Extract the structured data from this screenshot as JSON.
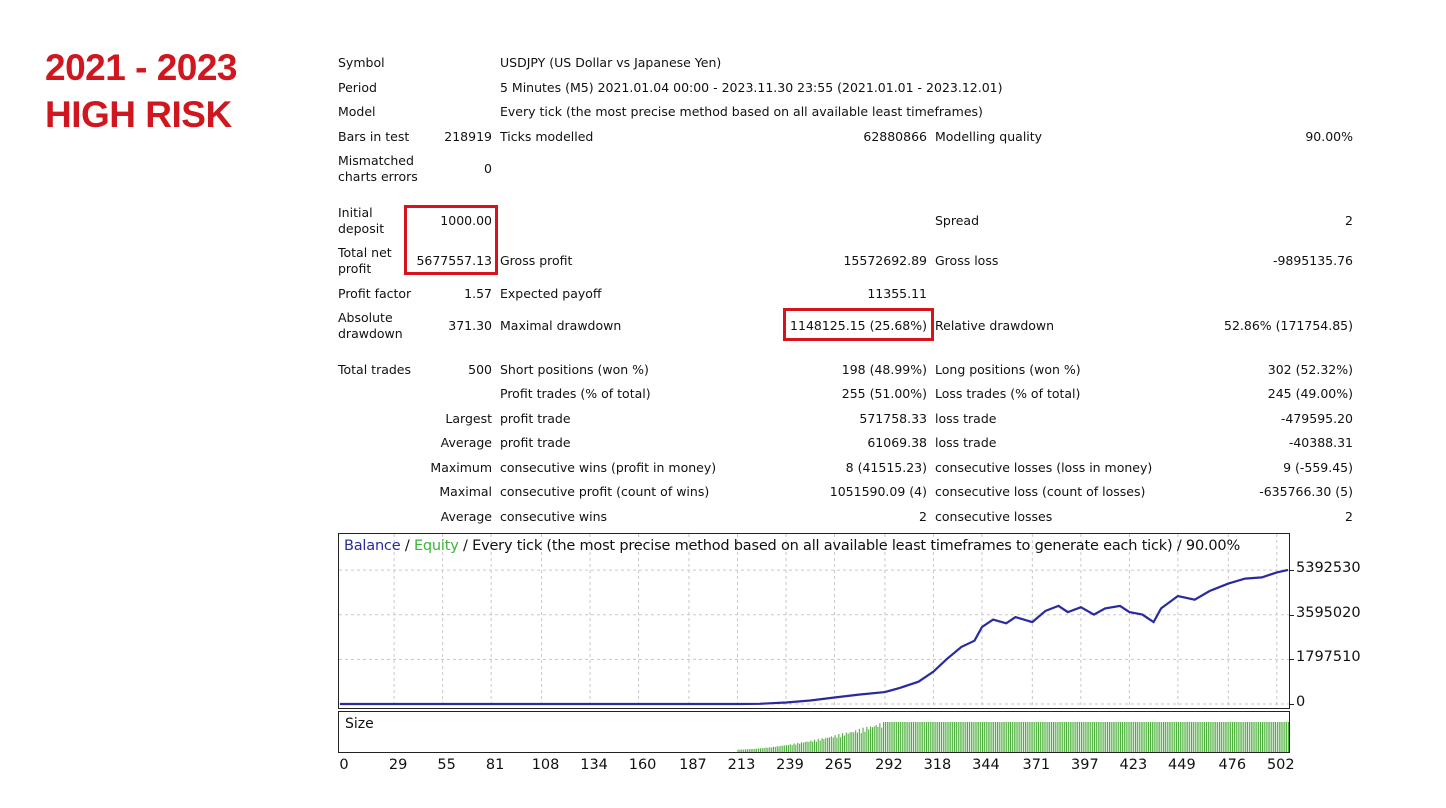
{
  "headline": {
    "line1": "2021 - 2023",
    "line2": "HIGH RISK"
  },
  "report": {
    "symbol_label": "Symbol",
    "symbol_value": "USDJPY (US Dollar vs Japanese Yen)",
    "period_label": "Period",
    "period_value": "5 Minutes (M5) 2021.01.04 00:00 - 2023.11.30 23:55 (2021.01.01 - 2023.12.01)",
    "model_label": "Model",
    "model_value": "Every tick (the most precise method based on all available least timeframes)",
    "bars_label": "Bars in test",
    "bars_value": "218919",
    "ticks_label": "Ticks modelled",
    "ticks_value": "62880866",
    "quality_label": "Modelling quality",
    "quality_value": "90.00%",
    "mismatch_label": "Mismatched charts errors",
    "mismatch_value": "0",
    "deposit_label": "Initial deposit",
    "deposit_value": "1000.00",
    "spread_label": "Spread",
    "spread_value": "2",
    "netprofit_label": "Total net profit",
    "netprofit_value": "5677557.13",
    "grossprofit_label": "Gross profit",
    "grossprofit_value": "15572692.89",
    "grossloss_label": "Gross loss",
    "grossloss_value": "-9895135.76",
    "pf_label": "Profit factor",
    "pf_value": "1.57",
    "payoff_label": "Expected payoff",
    "payoff_value": "11355.11",
    "absdd_label": "Absolute drawdown",
    "absdd_value": "371.30",
    "maxdd_label": "Maximal drawdown",
    "maxdd_value": "1148125.15 (25.68%)",
    "reldd_label": "Relative drawdown",
    "reldd_value": "52.86% (171754.85)",
    "trades_label": "Total trades",
    "trades_value": "500",
    "short_label": "Short positions (won %)",
    "short_value": "198 (48.99%)",
    "long_label": "Long positions (won %)",
    "long_value": "302 (52.32%)",
    "profittrades_label": "Profit trades (% of total)",
    "profittrades_value": "255 (51.00%)",
    "losstrades_label": "Loss trades (% of total)",
    "losstrades_value": "245 (49.00%)",
    "largest_label": "Largest",
    "largest_profit_label": "profit trade",
    "largest_profit_value": "571758.33",
    "largest_loss_label": "loss trade",
    "largest_loss_value": "-479595.20",
    "average_label": "Average",
    "average_profit_label": "profit trade",
    "average_profit_value": "61069.38",
    "average_loss_label": "loss trade",
    "average_loss_value": "-40388.31",
    "maximum_label": "Maximum",
    "max_wins_label": "consecutive wins (profit in money)",
    "max_wins_value": "8 (41515.23)",
    "max_losses_label": "consecutive losses (loss in money)",
    "max_losses_value": "9 (-559.45)",
    "maximal_label": "Maximal",
    "maxl_profit_label": "consecutive profit (count of wins)",
    "maxl_profit_value": "1051590.09 (4)",
    "maxl_loss_label": "consecutive loss (count of losses)",
    "maxl_loss_value": "-635766.30 (5)",
    "average2_label": "Average",
    "avg_wins_label": "consecutive wins",
    "avg_wins_value": "2",
    "avg_losses_label": "consecutive losses",
    "avg_losses_value": "2"
  },
  "chart": {
    "legend_balance": "Balance",
    "legend_sep1": " / ",
    "legend_equity": "Equity",
    "legend_rest": " / Every tick (the most precise method based on all available least timeframes to generate each tick) / 90.00%",
    "size_label": "Size"
  },
  "colors": {
    "balance": "#2a2aa0",
    "equity": "#3cb43c",
    "size_bars": "#4caf3c",
    "highlight": "#d7141c",
    "headline": "#d0161e"
  },
  "chart_data": {
    "type": "line",
    "title": "",
    "series": [
      {
        "name": "Balance",
        "x": [
          0,
          29,
          55,
          81,
          108,
          134,
          160,
          187,
          213,
          225,
          239,
          252,
          265,
          278,
          292,
          300,
          310,
          318,
          325,
          333,
          340,
          344,
          350,
          357,
          362,
          371,
          378,
          385,
          390,
          397,
          404,
          410,
          418,
          423,
          430,
          436,
          440,
          449,
          458,
          466,
          476,
          485,
          494,
          502,
          508
        ],
        "y": [
          1000,
          1000,
          1000,
          1000,
          1000,
          1000,
          1000,
          1000,
          1000,
          10000,
          60000,
          140000,
          260000,
          380000,
          480000,
          650000,
          900000,
          1300000,
          1800000,
          2300000,
          2550000,
          3100000,
          3400000,
          3250000,
          3500000,
          3300000,
          3750000,
          3950000,
          3700000,
          3900000,
          3600000,
          3850000,
          3950000,
          3700000,
          3600000,
          3300000,
          3850000,
          4350000,
          4200000,
          4550000,
          4850000,
          5050000,
          5100000,
          5300000,
          5400000
        ]
      }
    ],
    "size_series": {
      "name": "Size",
      "x_start": 213,
      "x_ramp_end": 292,
      "x_end": 508,
      "max_fraction": 1.0
    },
    "y_ticks": [
      "5392530",
      "3595020",
      "1797510",
      "0"
    ],
    "x_ticks": [
      "0",
      "29",
      "55",
      "81",
      "108",
      "134",
      "160",
      "187",
      "213",
      "239",
      "265",
      "292",
      "318",
      "344",
      "371",
      "397",
      "423",
      "449",
      "476",
      "502"
    ],
    "ylim": [
      0,
      5800000
    ],
    "xlim": [
      0,
      508
    ],
    "grid": true
  }
}
